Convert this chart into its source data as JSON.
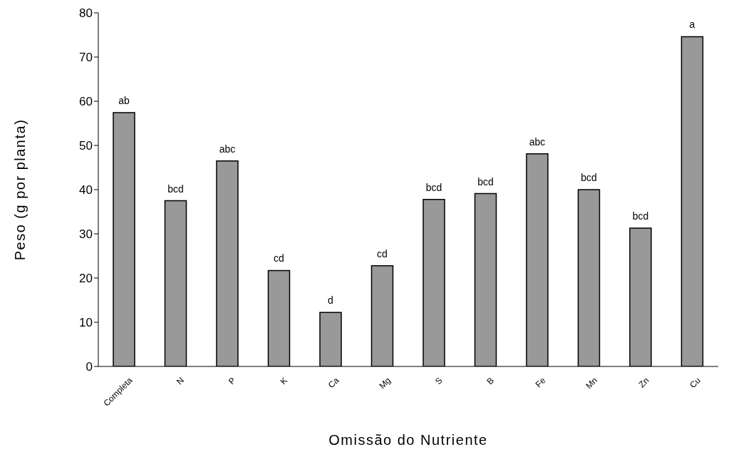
{
  "chart_data": {
    "type": "bar",
    "xlabel": "Omissão do Nutriente",
    "ylabel": "Peso (g por planta)",
    "categories": [
      "Completa",
      "N",
      "P",
      "K",
      "Ca",
      "Mg",
      "S",
      "B",
      "Fe",
      "Mn",
      "Zn",
      "Cu"
    ],
    "values": [
      57.4,
      37.5,
      46.5,
      21.7,
      12.2,
      22.8,
      37.8,
      39.1,
      48.1,
      40.0,
      31.3,
      74.6
    ],
    "value_labels": [
      "ab",
      "bcd",
      "abc",
      "cd",
      "d",
      "cd",
      "bcd",
      "bcd",
      "abc",
      "bcd",
      "bcd",
      "a"
    ],
    "color": "#999999",
    "ylim": [
      0,
      80
    ],
    "yticks": [
      0,
      10,
      20,
      30,
      40,
      50,
      60,
      70,
      80
    ],
    "grid": false,
    "legend": false
  }
}
